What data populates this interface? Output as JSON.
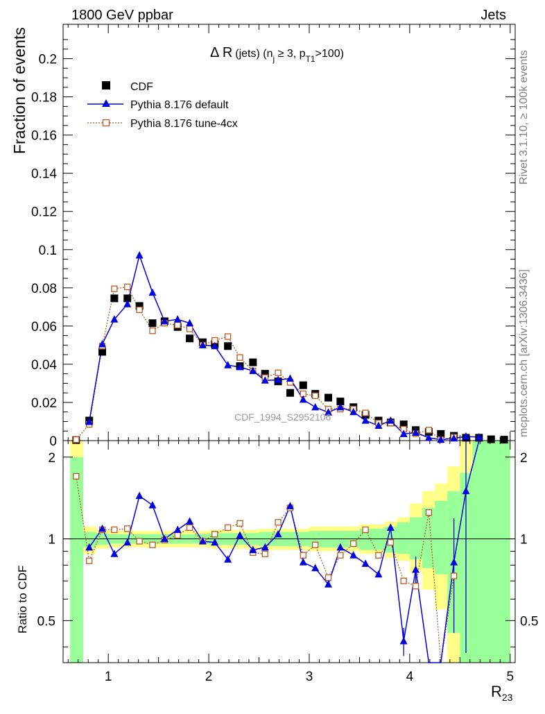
{
  "header": {
    "left": "1800 GeV ppbar",
    "right": "Jets"
  },
  "side_labels": {
    "top": "Rivet 3.1.10, ≥ 100k events",
    "bottom": "mcplots.cern.ch [arXiv:1306.3436]"
  },
  "watermark": "CDF_1994_S2952106",
  "chart_data": {
    "type": "scatter",
    "title": {
      "prefix": "Δ R",
      "text1": "(jets) (n",
      "sub1": "j",
      "text2": " ≥ 3, p",
      "sub2": "T1",
      "text3": ">100)"
    },
    "xlabel": {
      "main": "R",
      "sub": "23"
    },
    "ylabel": "Fraction of events",
    "ratio_ylabel": "Ratio to CDF",
    "xlim": [
      0.55,
      5.05
    ],
    "ylim": [
      0,
      0.218
    ],
    "ratio_ylim": [
      0.35,
      2.3
    ],
    "x_ticks": [
      "1",
      "2",
      "3",
      "4",
      "5"
    ],
    "y_ticks": [
      "0",
      "0.02",
      "0.04",
      "0.06",
      "0.08",
      "0.1",
      "0.12",
      "0.14",
      "0.16",
      "0.18",
      "0.2"
    ],
    "ratio_ticks": [
      "0.5",
      "1",
      "2"
    ],
    "legend": [
      {
        "name": "CDF",
        "color": "#000000",
        "marker": "square"
      },
      {
        "name": "Pythia 8.176 default",
        "color": "#0000dd",
        "marker": "triangle"
      },
      {
        "name": "Pythia 8.176 tune-4cx",
        "color": "#b85a24",
        "marker": "open-square"
      }
    ],
    "x": [
      0.68,
      0.81,
      0.94,
      1.06,
      1.19,
      1.31,
      1.44,
      1.56,
      1.69,
      1.81,
      1.94,
      2.06,
      2.19,
      2.31,
      2.44,
      2.56,
      2.69,
      2.81,
      2.94,
      3.06,
      3.19,
      3.31,
      3.44,
      3.56,
      3.69,
      3.81,
      3.94,
      4.06,
      4.19,
      4.31,
      4.44,
      4.56,
      4.69,
      4.81,
      4.94
    ],
    "series": [
      {
        "name": "CDF",
        "values": [
          0.0003,
          0.0105,
          0.0465,
          0.0745,
          0.0745,
          0.0705,
          0.0615,
          0.0625,
          0.0595,
          0.0535,
          0.0515,
          0.0505,
          0.0495,
          0.039,
          0.041,
          0.035,
          0.031,
          0.025,
          0.029,
          0.0245,
          0.0225,
          0.0205,
          0.0175,
          0.0135,
          0.0105,
          0.0095,
          0.0085,
          0.0055,
          0.0045,
          0.0035,
          0.0025,
          0.0015,
          0.0015,
          0.0007,
          0.0005
        ]
      },
      {
        "name": "Pythia 8.176 default",
        "values": [
          null,
          0.0098,
          0.0505,
          0.0635,
          0.0715,
          0.097,
          0.0775,
          0.0625,
          0.0635,
          0.0615,
          0.05,
          0.0495,
          0.0395,
          0.0385,
          0.0365,
          0.0315,
          0.0318,
          0.0325,
          0.0215,
          0.0175,
          0.0148,
          0.0175,
          0.015,
          0.0105,
          0.0078,
          0.0105,
          0.0035,
          0.0042,
          0.0015,
          0.0005,
          0.0012,
          0.0022,
          0.0018,
          null,
          null
        ]
      },
      {
        "name": "Pythia 8.176 tune-4cx",
        "values": [
          0.0005,
          0.0085,
          0.0495,
          0.0795,
          0.0805,
          0.0685,
          0.0575,
          0.0615,
          0.0605,
          0.0585,
          0.05,
          0.0525,
          0.0545,
          0.0435,
          0.0365,
          0.033,
          0.0355,
          0.0305,
          0.0245,
          0.0235,
          0.0165,
          0.0165,
          0.0165,
          0.0145,
          0.0092,
          0.0092,
          0.006,
          0.0037,
          0.0055,
          0.0005,
          0.0018,
          null,
          null,
          null,
          null
        ]
      }
    ],
    "ratio_series": [
      {
        "name": "Pythia 8.176 default",
        "values": [
          null,
          0.93,
          1.09,
          0.88,
          0.97,
          1.44,
          1.33,
          1.0,
          1.08,
          1.16,
          0.98,
          0.97,
          0.84,
          1.03,
          0.91,
          0.93,
          1.04,
          1.32,
          0.82,
          0.78,
          0.68,
          0.93,
          0.87,
          0.81,
          0.74,
          1.1,
          0.42,
          0.77,
          0.3,
          0.15,
          0.82,
          1.5,
          2.6,
          null,
          null
        ],
        "errors": [
          null,
          null,
          null,
          null,
          null,
          null,
          null,
          null,
          null,
          null,
          null,
          null,
          null,
          null,
          null,
          null,
          null,
          null,
          null,
          null,
          null,
          null,
          null,
          null,
          null,
          null,
          0.05,
          0.09,
          null,
          null,
          0.37,
          1.12,
          null,
          null,
          null
        ]
      },
      {
        "name": "Pythia 8.176 tune-4cx",
        "values": [
          1.7,
          0.83,
          1.08,
          1.08,
          1.09,
          0.98,
          0.95,
          0.99,
          1.03,
          1.1,
          0.98,
          1.04,
          1.1,
          1.14,
          0.89,
          0.88,
          1.15,
          1.3,
          0.87,
          0.95,
          0.72,
          0.87,
          0.96,
          1.08,
          0.87,
          0.97,
          0.7,
          0.67,
          1.25,
          0.15,
          0.73,
          null,
          null,
          null,
          null
        ],
        "errors": [
          null,
          null,
          null,
          null,
          null,
          null,
          null,
          null,
          null,
          null,
          null,
          null,
          null,
          null,
          null,
          null,
          null,
          null,
          null,
          null,
          null,
          null,
          null,
          null,
          null,
          null,
          null,
          null,
          null,
          null,
          null,
          null,
          null,
          null,
          null
        ]
      }
    ],
    "ratio_band_inner": [
      [
        0.62,
        0.75,
        0.35,
        2.0
      ],
      [
        0.75,
        0.875,
        0.93,
        1.06
      ],
      [
        0.875,
        1.0,
        0.95,
        1.05
      ],
      [
        1.0,
        1.5,
        0.96,
        1.04
      ],
      [
        1.5,
        2.0,
        0.96,
        1.04
      ],
      [
        2.0,
        2.5,
        0.95,
        1.05
      ],
      [
        2.5,
        3.0,
        0.94,
        1.06
      ],
      [
        3.0,
        3.5,
        0.93,
        1.07
      ],
      [
        3.5,
        3.75,
        0.91,
        1.09
      ],
      [
        3.75,
        3.875,
        0.89,
        1.11
      ],
      [
        3.875,
        4.0,
        0.88,
        1.15
      ],
      [
        4.0,
        4.125,
        0.84,
        1.2
      ],
      [
        4.125,
        4.25,
        0.78,
        1.3
      ],
      [
        4.25,
        4.375,
        0.74,
        1.38
      ],
      [
        4.375,
        4.5,
        0.45,
        1.5
      ],
      [
        4.5,
        4.625,
        0.35,
        1.75
      ],
      [
        4.625,
        4.75,
        0.35,
        2.3
      ],
      [
        4.75,
        5.0,
        0.35,
        2.3
      ]
    ],
    "ratio_band_outer": [
      [
        0.62,
        0.75,
        0.35,
        2.3
      ],
      [
        0.75,
        0.875,
        0.88,
        1.11
      ],
      [
        0.875,
        1.0,
        0.92,
        1.08
      ],
      [
        1.0,
        1.5,
        0.93,
        1.07
      ],
      [
        1.5,
        2.0,
        0.93,
        1.07
      ],
      [
        2.0,
        2.5,
        0.92,
        1.08
      ],
      [
        2.5,
        3.0,
        0.91,
        1.09
      ],
      [
        3.0,
        3.5,
        0.9,
        1.11
      ],
      [
        3.5,
        3.75,
        0.88,
        1.13
      ],
      [
        3.75,
        3.875,
        0.85,
        1.16
      ],
      [
        3.875,
        4.0,
        0.83,
        1.2
      ],
      [
        4.0,
        4.125,
        0.75,
        1.35
      ],
      [
        4.125,
        4.25,
        0.65,
        1.5
      ],
      [
        4.25,
        4.375,
        0.55,
        1.6
      ],
      [
        4.375,
        4.5,
        0.35,
        1.85
      ],
      [
        4.5,
        4.625,
        0.35,
        2.3
      ],
      [
        4.625,
        4.75,
        0.35,
        2.3
      ],
      [
        4.75,
        5.0,
        0.35,
        2.3
      ]
    ],
    "colors": {
      "band_inner": "#99ff99",
      "band_outer": "#ffff88"
    }
  }
}
